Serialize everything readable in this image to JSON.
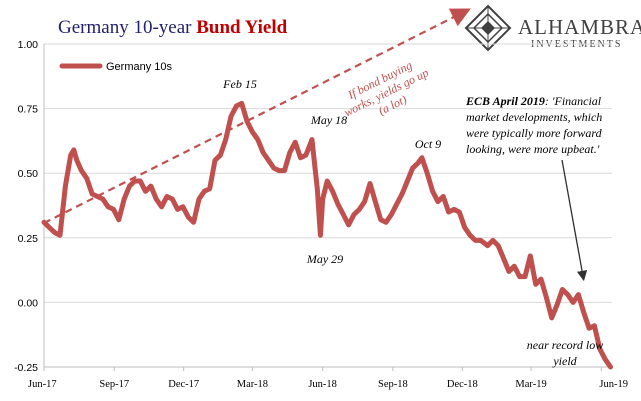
{
  "header": {
    "title_part1": "Germany 10-year ",
    "title_part2": "Bund Yield"
  },
  "logo": {
    "name": "ALHAMBRA",
    "sub": "INVESTMENTS"
  },
  "colors": {
    "series": "#c0504d",
    "title_blue": "#1f1f6b",
    "title_red": "#c00000",
    "grid": "#d9d9d9"
  },
  "annotations": {
    "trend_line1": "If bond buying",
    "trend_line2": "works, yields go up",
    "trend_line3": "(a lot)",
    "feb15": "Feb 15",
    "may18": "May 18",
    "may29": "May 29",
    "oct9": "Oct 9",
    "ecb_bold": "ECB April 2019",
    "ecb_line1": ": 'Financial",
    "ecb_line2": "market developments, which",
    "ecb_line3": "were typically more forward",
    "ecb_line4": "looking, were more upbeat.'",
    "low_line1": "near record low",
    "low_line2": "yield"
  },
  "chart_data": {
    "type": "line",
    "title": "Germany 10-year Bund Yield",
    "ylim": [
      -0.25,
      1.0
    ],
    "yticks": [
      "1.00",
      "0.75",
      "0.50",
      "0.25",
      "0.00",
      "-0.25"
    ],
    "ytick_values": [
      1.0,
      0.75,
      0.5,
      0.25,
      0.0,
      -0.25
    ],
    "xlim": [
      "2017-06-01",
      "2019-06-15"
    ],
    "xticks": [
      "Jun-17",
      "Sep-17",
      "Dec-17",
      "Mar-18",
      "Jun-18",
      "Sep-18",
      "Dec-18",
      "Mar-19",
      "Jun-19"
    ],
    "xtick_dates": [
      "2017-06-01",
      "2017-09-01",
      "2017-12-01",
      "2018-03-01",
      "2018-06-01",
      "2018-09-01",
      "2018-12-01",
      "2019-03-01",
      "2019-06-01"
    ],
    "grid": true,
    "legend": "top-left",
    "series": [
      {
        "name": "Germany 10s",
        "x": [
          "2017-06-01",
          "2017-06-08",
          "2017-06-15",
          "2017-06-22",
          "2017-06-29",
          "2017-07-06",
          "2017-07-10",
          "2017-07-14",
          "2017-07-20",
          "2017-07-27",
          "2017-08-03",
          "2017-08-10",
          "2017-08-17",
          "2017-08-24",
          "2017-08-31",
          "2017-09-07",
          "2017-09-14",
          "2017-09-21",
          "2017-09-28",
          "2017-10-05",
          "2017-10-12",
          "2017-10-19",
          "2017-10-26",
          "2017-11-02",
          "2017-11-09",
          "2017-11-16",
          "2017-11-23",
          "2017-11-30",
          "2017-12-07",
          "2017-12-14",
          "2017-12-21",
          "2017-12-28",
          "2018-01-04",
          "2018-01-11",
          "2018-01-18",
          "2018-01-25",
          "2018-02-01",
          "2018-02-08",
          "2018-02-15",
          "2018-02-22",
          "2018-03-01",
          "2018-03-08",
          "2018-03-15",
          "2018-03-22",
          "2018-03-29",
          "2018-04-05",
          "2018-04-12",
          "2018-04-19",
          "2018-04-26",
          "2018-05-03",
          "2018-05-10",
          "2018-05-18",
          "2018-05-22",
          "2018-05-25",
          "2018-05-29",
          "2018-06-01",
          "2018-06-07",
          "2018-06-14",
          "2018-06-21",
          "2018-06-28",
          "2018-07-05",
          "2018-07-12",
          "2018-07-19",
          "2018-07-26",
          "2018-08-02",
          "2018-08-09",
          "2018-08-16",
          "2018-08-23",
          "2018-08-30",
          "2018-09-06",
          "2018-09-13",
          "2018-09-20",
          "2018-09-27",
          "2018-10-04",
          "2018-10-09",
          "2018-10-16",
          "2018-10-23",
          "2018-10-30",
          "2018-11-06",
          "2018-11-13",
          "2018-11-20",
          "2018-11-27",
          "2018-12-04",
          "2018-12-11",
          "2018-12-18",
          "2018-12-25",
          "2019-01-03",
          "2019-01-10",
          "2019-01-17",
          "2019-01-24",
          "2019-01-31",
          "2019-02-07",
          "2019-02-14",
          "2019-02-21",
          "2019-02-28",
          "2019-03-07",
          "2019-03-14",
          "2019-03-21",
          "2019-03-28",
          "2019-04-04",
          "2019-04-11",
          "2019-04-18",
          "2019-04-25",
          "2019-05-02",
          "2019-05-09",
          "2019-05-16",
          "2019-05-23",
          "2019-05-30",
          "2019-06-06",
          "2019-06-13"
        ],
        "values": [
          0.31,
          0.29,
          0.27,
          0.26,
          0.45,
          0.57,
          0.59,
          0.55,
          0.51,
          0.48,
          0.42,
          0.41,
          0.4,
          0.37,
          0.36,
          0.32,
          0.4,
          0.45,
          0.47,
          0.47,
          0.43,
          0.45,
          0.4,
          0.37,
          0.41,
          0.4,
          0.36,
          0.37,
          0.33,
          0.31,
          0.4,
          0.43,
          0.44,
          0.55,
          0.57,
          0.63,
          0.72,
          0.76,
          0.77,
          0.7,
          0.66,
          0.63,
          0.58,
          0.55,
          0.52,
          0.51,
          0.51,
          0.58,
          0.62,
          0.56,
          0.57,
          0.63,
          0.52,
          0.44,
          0.26,
          0.4,
          0.47,
          0.43,
          0.38,
          0.34,
          0.3,
          0.34,
          0.36,
          0.39,
          0.46,
          0.39,
          0.32,
          0.31,
          0.34,
          0.38,
          0.42,
          0.47,
          0.52,
          0.54,
          0.56,
          0.5,
          0.43,
          0.39,
          0.41,
          0.35,
          0.36,
          0.35,
          0.29,
          0.26,
          0.24,
          0.24,
          0.22,
          0.24,
          0.22,
          0.17,
          0.12,
          0.14,
          0.1,
          0.1,
          0.18,
          0.07,
          0.09,
          0.02,
          -0.06,
          -0.01,
          0.05,
          0.03,
          0.0,
          0.03,
          -0.04,
          -0.1,
          -0.09,
          -0.18,
          -0.22,
          -0.25
        ]
      }
    ]
  }
}
